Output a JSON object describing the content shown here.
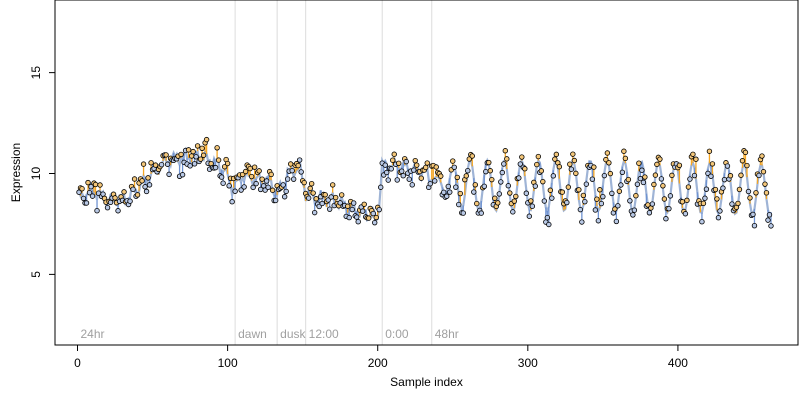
{
  "chart_data": {
    "type": "scatter",
    "title": "",
    "xlabel": "Sample index",
    "ylabel": "Expression",
    "xlim": [
      -15,
      480
    ],
    "ylim": [
      1.5,
      18.6
    ],
    "xticks": [
      0,
      100,
      200,
      300,
      400
    ],
    "yticks": [
      5,
      10,
      15
    ],
    "grid": false,
    "legend": "none",
    "colors": {
      "fit_line": "#9fb4d6",
      "residual_pos": "#f5a623",
      "residual_neg": "#6f93d2",
      "point_fill_pos": "#f4c77a",
      "point_fill_neg": "#b9c9e6",
      "point_stroke": "#000000",
      "boundary": "#dcdcdc",
      "segment_label": "#a0a0a0",
      "frame": "#000000"
    },
    "segments": [
      {
        "x": 0,
        "label": "24hr"
      },
      {
        "x": 105,
        "label": "dawn"
      },
      {
        "x": 133,
        "label": "dusk"
      },
      {
        "x": 152,
        "label": "12:00"
      },
      {
        "x": 203,
        "label": "0:00"
      },
      {
        "x": 236,
        "label": "48hr"
      }
    ],
    "anchors_fit": [
      [
        2,
        8.8
      ],
      [
        10,
        9.2
      ],
      [
        20,
        8.7
      ],
      [
        30,
        8.7
      ],
      [
        40,
        9.2
      ],
      [
        50,
        10.1
      ],
      [
        60,
        10.7
      ],
      [
        70,
        10.8
      ],
      [
        80,
        10.9
      ],
      [
        90,
        10.6
      ],
      [
        98,
        10.2
      ],
      [
        103,
        9.3
      ],
      [
        110,
        9.9
      ],
      [
        120,
        9.7
      ],
      [
        128,
        9.6
      ],
      [
        133,
        9.0
      ],
      [
        140,
        10.0
      ],
      [
        148,
        10.3
      ],
      [
        152,
        9.0
      ],
      [
        160,
        8.8
      ],
      [
        170,
        8.7
      ],
      [
        180,
        8.4
      ],
      [
        190,
        8.1
      ],
      [
        200,
        7.8
      ],
      [
        203,
        10.4
      ],
      [
        210,
        10.4
      ],
      [
        220,
        10.3
      ],
      [
        230,
        10.1
      ],
      [
        236,
        9.7
      ],
      [
        250,
        9.5
      ],
      [
        270,
        9.4
      ],
      [
        300,
        9.4
      ],
      [
        350,
        9.4
      ],
      [
        400,
        9.3
      ],
      [
        460,
        9.2
      ],
      [
        462,
        9.2
      ]
    ],
    "oscillation": {
      "x_start": 236,
      "x_end": 462,
      "period": 11.4,
      "amplitude": 1.25
    },
    "n_points": 462,
    "points_seed": 7
  }
}
